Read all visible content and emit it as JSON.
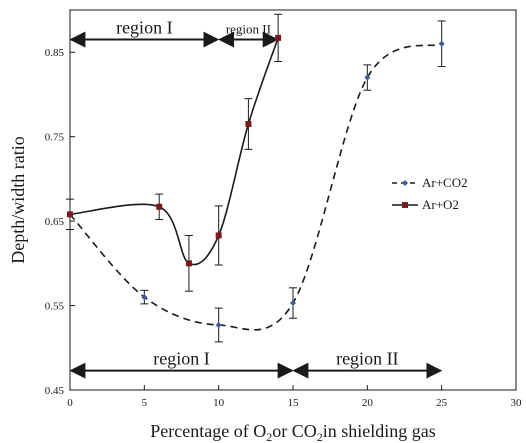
{
  "chart_data": {
    "type": "line",
    "xlabel": {
      "parts": [
        {
          "text": "Percentage of O"
        },
        {
          "text": "2",
          "sub": true
        },
        {
          "text": "or CO"
        },
        {
          "text": "2",
          "sub": true
        },
        {
          "text": "in shielding gas"
        }
      ]
    },
    "ylabel": "Depth/width ratio",
    "xlim": [
      0,
      30
    ],
    "ylim": [
      0.45,
      0.9
    ],
    "x_ticks": [
      "0",
      "5",
      "10",
      "15",
      "20",
      "25",
      "30"
    ],
    "y_ticks": [
      "0.45",
      "0.55",
      "0.65",
      "0.75",
      "0.85"
    ],
    "grid": false,
    "legend_position": "right",
    "series": [
      {
        "name": "Ar+CO2",
        "color": "#1a1a1a",
        "style": "dashed",
        "marker": "diamond",
        "marker_color": "#3a5a9a",
        "points": [
          {
            "x": 0,
            "y": 0.658,
            "err": 0.0
          },
          {
            "x": 5,
            "y": 0.56,
            "err": 0.008
          },
          {
            "x": 10,
            "y": 0.527,
            "err": 0.02
          },
          {
            "x": 15,
            "y": 0.553,
            "err": 0.018
          },
          {
            "x": 20,
            "y": 0.82,
            "err": 0.015
          },
          {
            "x": 25,
            "y": 0.86,
            "err": 0.027
          }
        ]
      },
      {
        "name": "Ar+O2",
        "color": "#1a1a1a",
        "style": "solid",
        "marker": "square",
        "marker_color": "#7a1a1a",
        "points": [
          {
            "x": 0,
            "y": 0.658,
            "err": 0.018
          },
          {
            "x": 6,
            "y": 0.667,
            "err": 0.015
          },
          {
            "x": 8,
            "y": 0.6,
            "err": 0.033
          },
          {
            "x": 10,
            "y": 0.633,
            "err": 0.035
          },
          {
            "x": 12,
            "y": 0.765,
            "err": 0.03
          },
          {
            "x": 14,
            "y": 0.867,
            "err": 0.028
          }
        ]
      }
    ],
    "annotations": [
      {
        "label": "region I",
        "y": 0.865,
        "x_from": 0,
        "x_to": 10,
        "size": "large"
      },
      {
        "label": "region II",
        "y": 0.865,
        "x_from": 10,
        "x_to": 14,
        "size": "small"
      },
      {
        "label": "region I",
        "y": 0.473,
        "x_from": 0,
        "x_to": 15,
        "size": "large"
      },
      {
        "label": "region II",
        "y": 0.473,
        "x_from": 15,
        "x_to": 25,
        "size": "large"
      }
    ]
  }
}
